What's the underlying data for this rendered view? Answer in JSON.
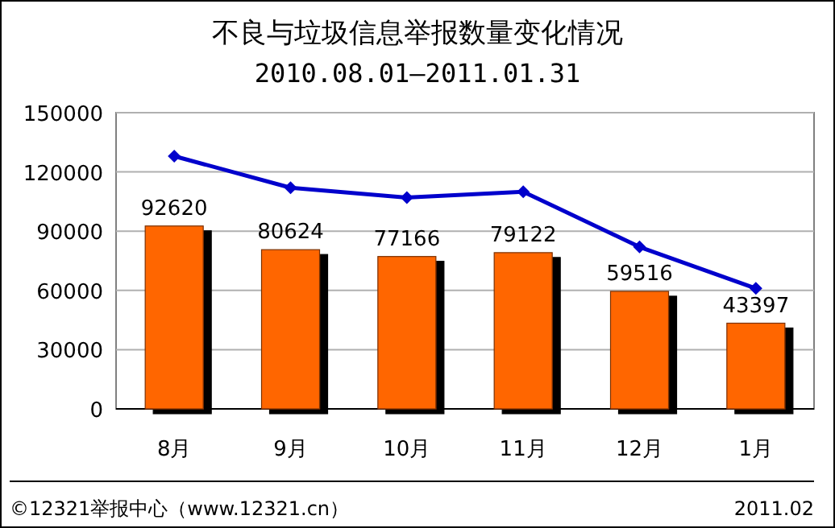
{
  "chart_data": {
    "type": "bar",
    "title": "不良与垃圾信息举报数量变化情况",
    "subtitle": "2010.08.01—2011.01.31",
    "categories": [
      "8月",
      "9月",
      "10月",
      "11月",
      "12月",
      "1月"
    ],
    "series": [
      {
        "color": "#ff6600",
        "values": [
          92620,
          80624,
          77166,
          79122,
          59516,
          43397
        ],
        "data_labels": true
      },
      {
        "type": "line",
        "color": "#0000cc",
        "values": [
          128000,
          112000,
          107000,
          110000,
          82000,
          61000
        ],
        "marker": "diamond"
      }
    ],
    "ylim": [
      0,
      150000
    ],
    "yticks": [
      0,
      30000,
      60000,
      90000,
      120000,
      150000
    ],
    "grid": "y",
    "annotations": [
      "©12321举报中心（www.12321.cn）",
      "2011.02"
    ]
  }
}
